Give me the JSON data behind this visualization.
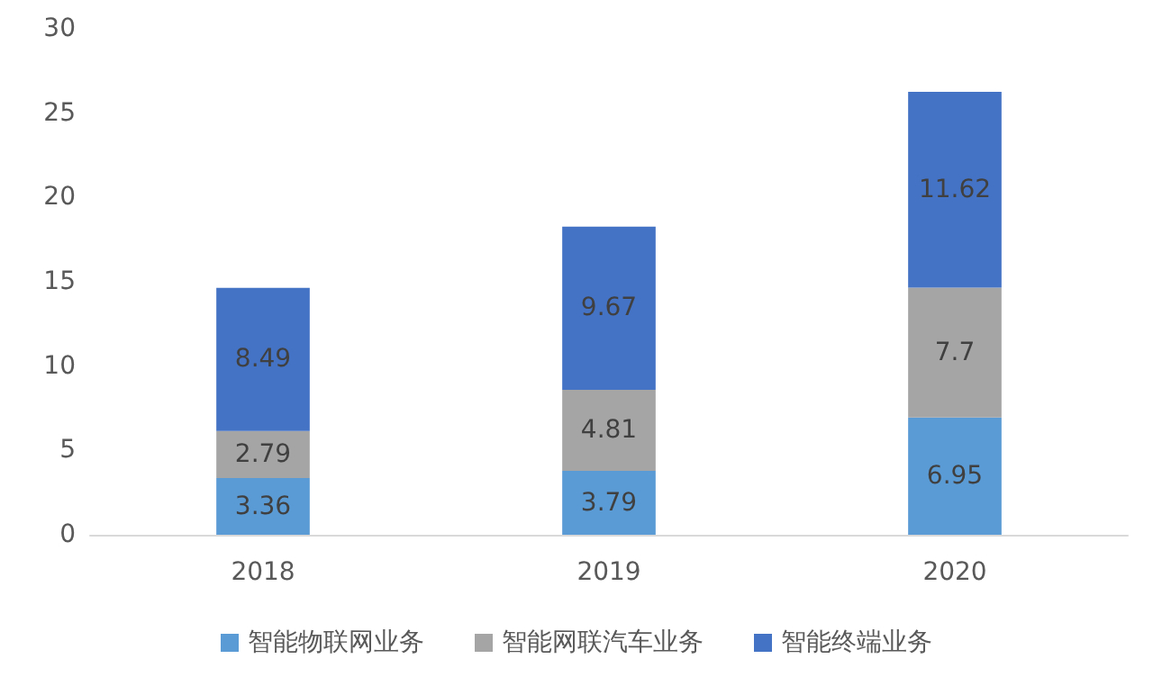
{
  "chart_data": {
    "type": "bar",
    "stacked": true,
    "categories": [
      "2018",
      "2019",
      "2020"
    ],
    "series": [
      {
        "name": "智能物联网业务",
        "color": "#5b9bd5",
        "values": [
          3.36,
          3.79,
          6.95
        ]
      },
      {
        "name": "智能网联汽车业务",
        "color": "#a5a5a5",
        "values": [
          2.79,
          4.81,
          7.7
        ]
      },
      {
        "name": "智能终端业务",
        "color": "#4472c4",
        "values": [
          8.49,
          9.67,
          11.62
        ]
      }
    ],
    "ylim": [
      0,
      30
    ],
    "yticks": [
      0,
      5,
      10,
      15,
      20,
      25,
      30
    ],
    "grid": false,
    "legend": "bottom",
    "data_labels": true
  }
}
